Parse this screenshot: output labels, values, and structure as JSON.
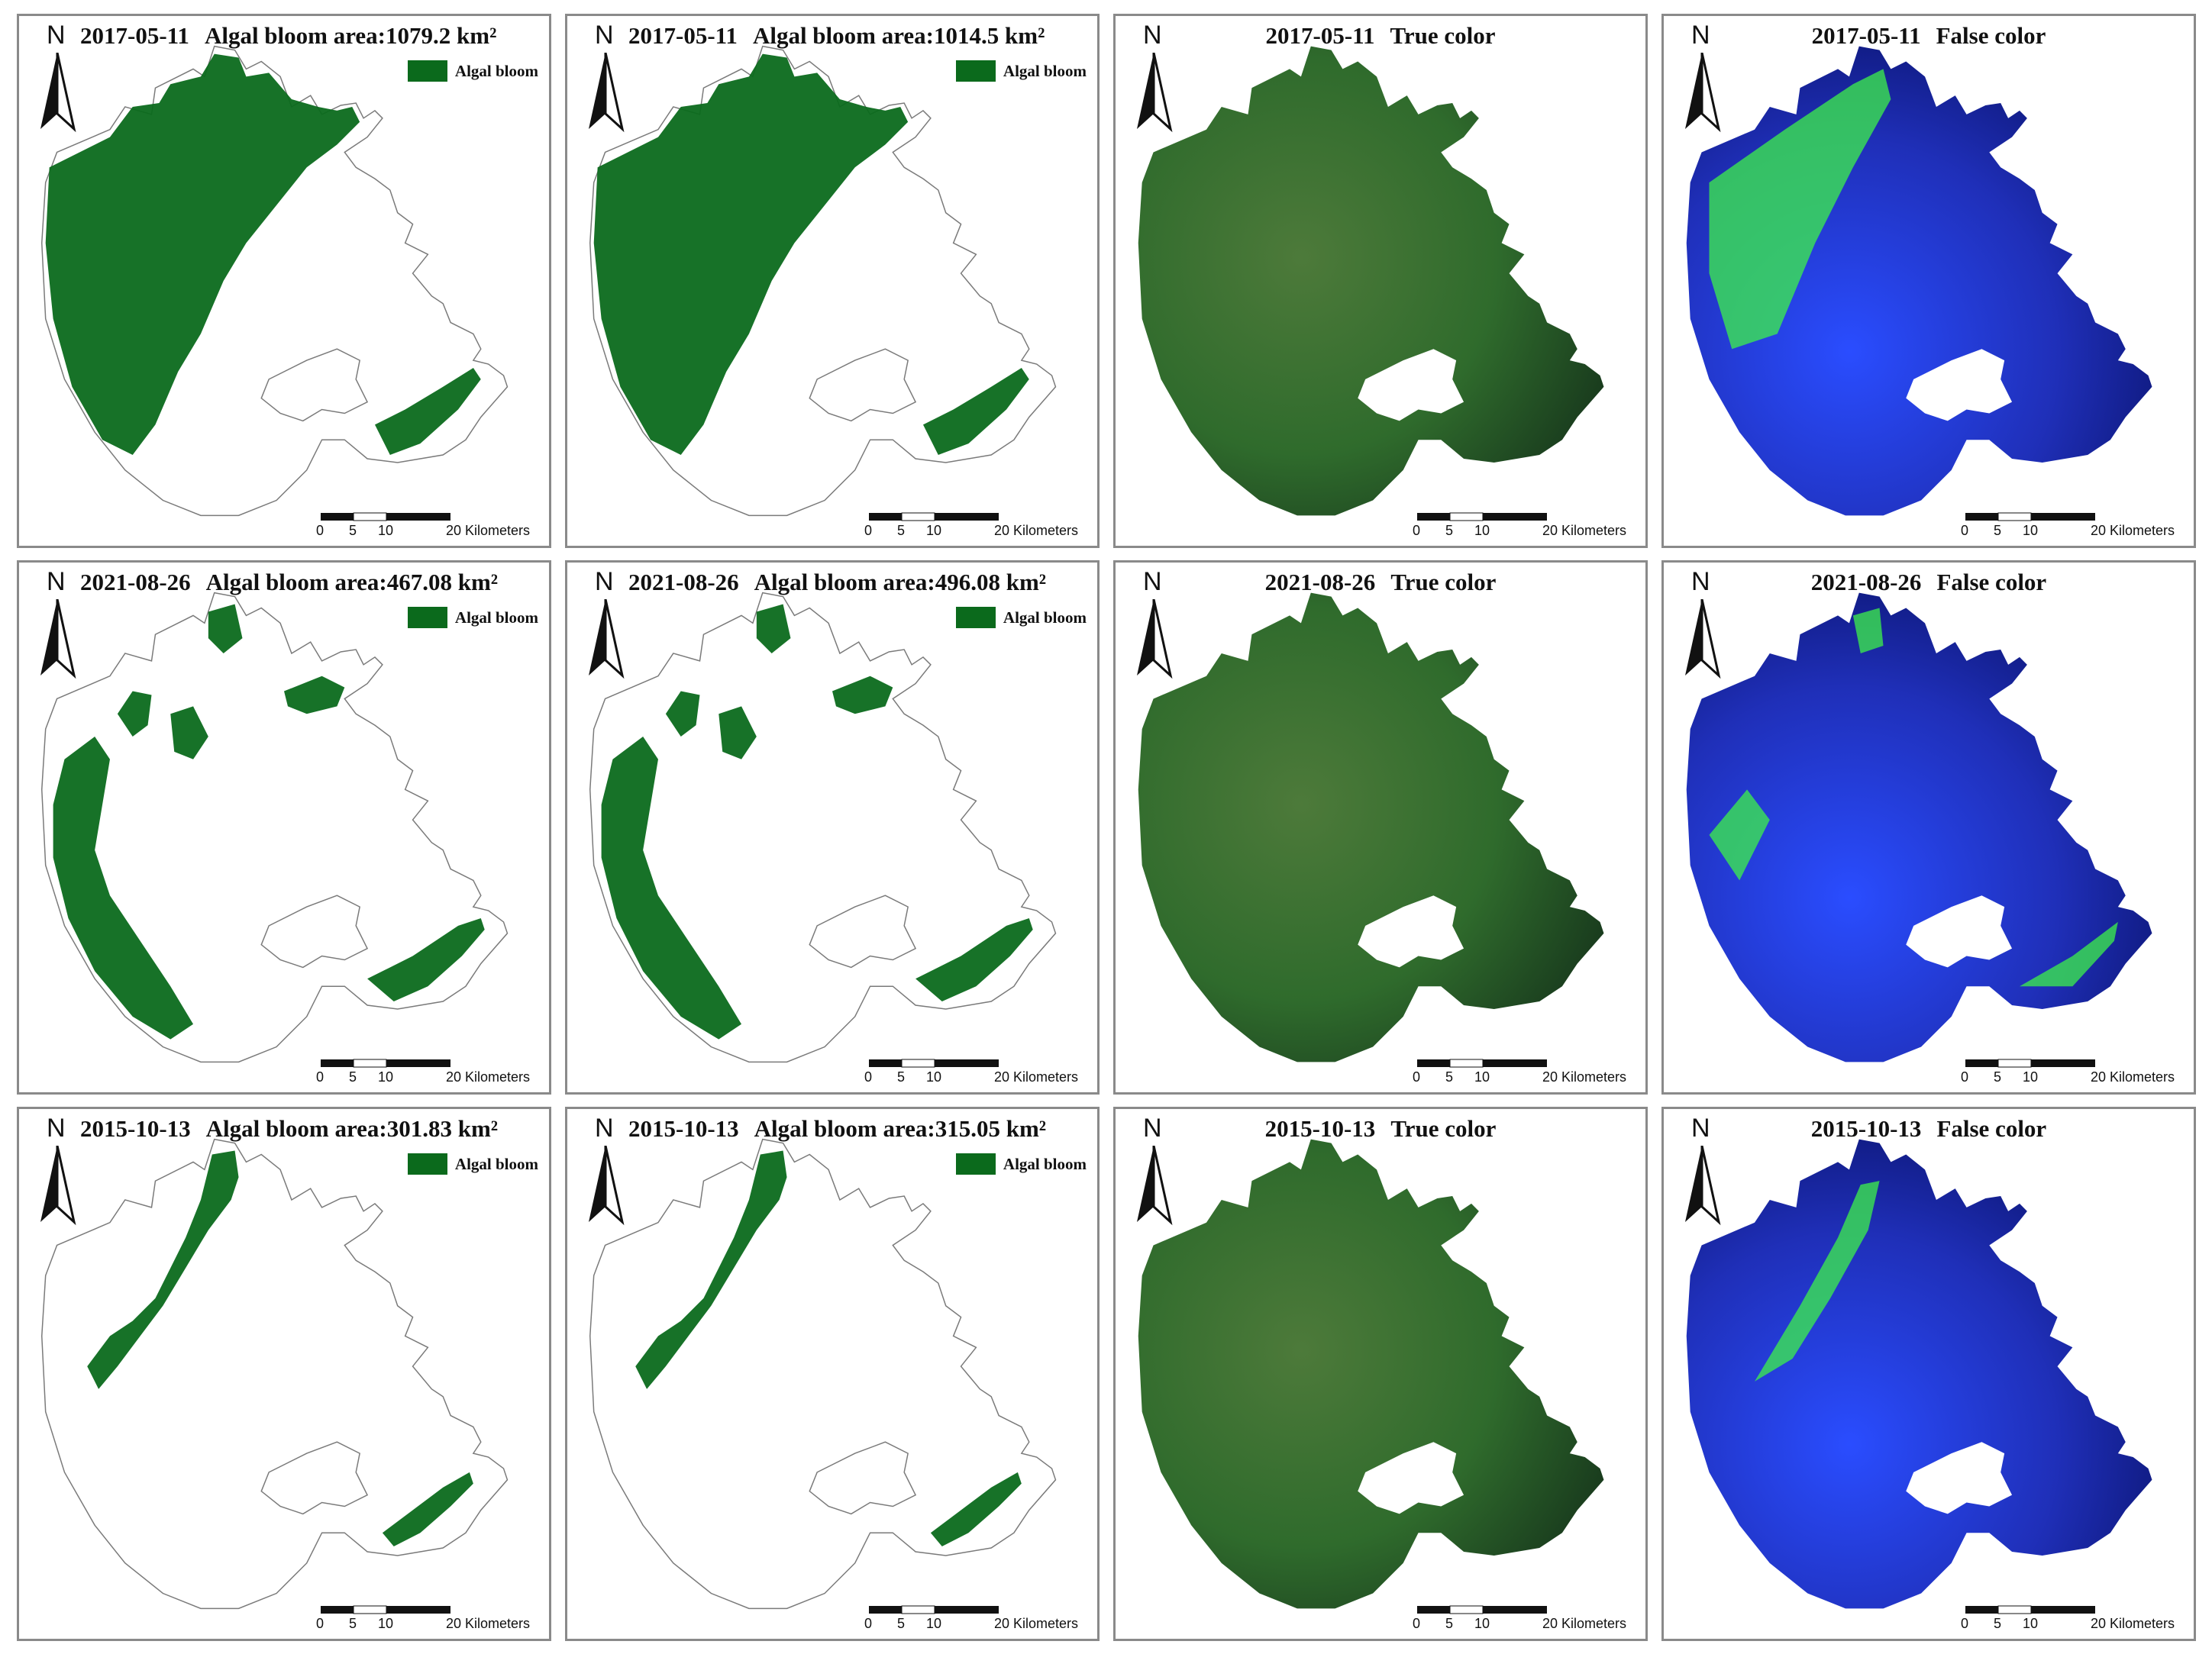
{
  "colors": {
    "bloom": "#0b6a1c",
    "true_color_water": "#2f6b2c",
    "false_color_water": "#1f2fb8",
    "false_color_bloom": "#3ef24a",
    "lake_outline": "#7a7a7a"
  },
  "common": {
    "north_label": "N",
    "legend_label": "Algal bloom",
    "scale_ticks": [
      "0",
      "5",
      "10",
      "20"
    ],
    "scale_unit": "Kilometers"
  },
  "rows": [
    {
      "date": "2017-05-11",
      "panels": [
        {
          "kind": "bloom",
          "label": "Algal bloom area:",
          "area": "1079.2",
          "unit": "km²",
          "coverage": "heavy"
        },
        {
          "kind": "bloom",
          "label": "Algal bloom area:",
          "area": "1014.5",
          "unit": "km²",
          "coverage": "heavy"
        },
        {
          "kind": "true",
          "label": "True color"
        },
        {
          "kind": "false",
          "label": "False color"
        }
      ]
    },
    {
      "date": "2021-08-26",
      "panels": [
        {
          "kind": "bloom",
          "label": "Algal bloom area:",
          "area": "467.08",
          "unit": "km²",
          "coverage": "medium"
        },
        {
          "kind": "bloom",
          "label": "Algal bloom area:",
          "area": "496.08",
          "unit": "km²",
          "coverage": "medium"
        },
        {
          "kind": "true",
          "label": "True color"
        },
        {
          "kind": "false",
          "label": "False color"
        }
      ]
    },
    {
      "date": "2015-10-13",
      "panels": [
        {
          "kind": "bloom",
          "label": "Algal bloom area:",
          "area": "301.83",
          "unit": "km²",
          "coverage": "light"
        },
        {
          "kind": "bloom",
          "label": "Algal bloom area:",
          "area": "315.05",
          "unit": "km²",
          "coverage": "light"
        },
        {
          "kind": "true",
          "label": "True color"
        },
        {
          "kind": "false",
          "label": "False color"
        }
      ]
    }
  ]
}
